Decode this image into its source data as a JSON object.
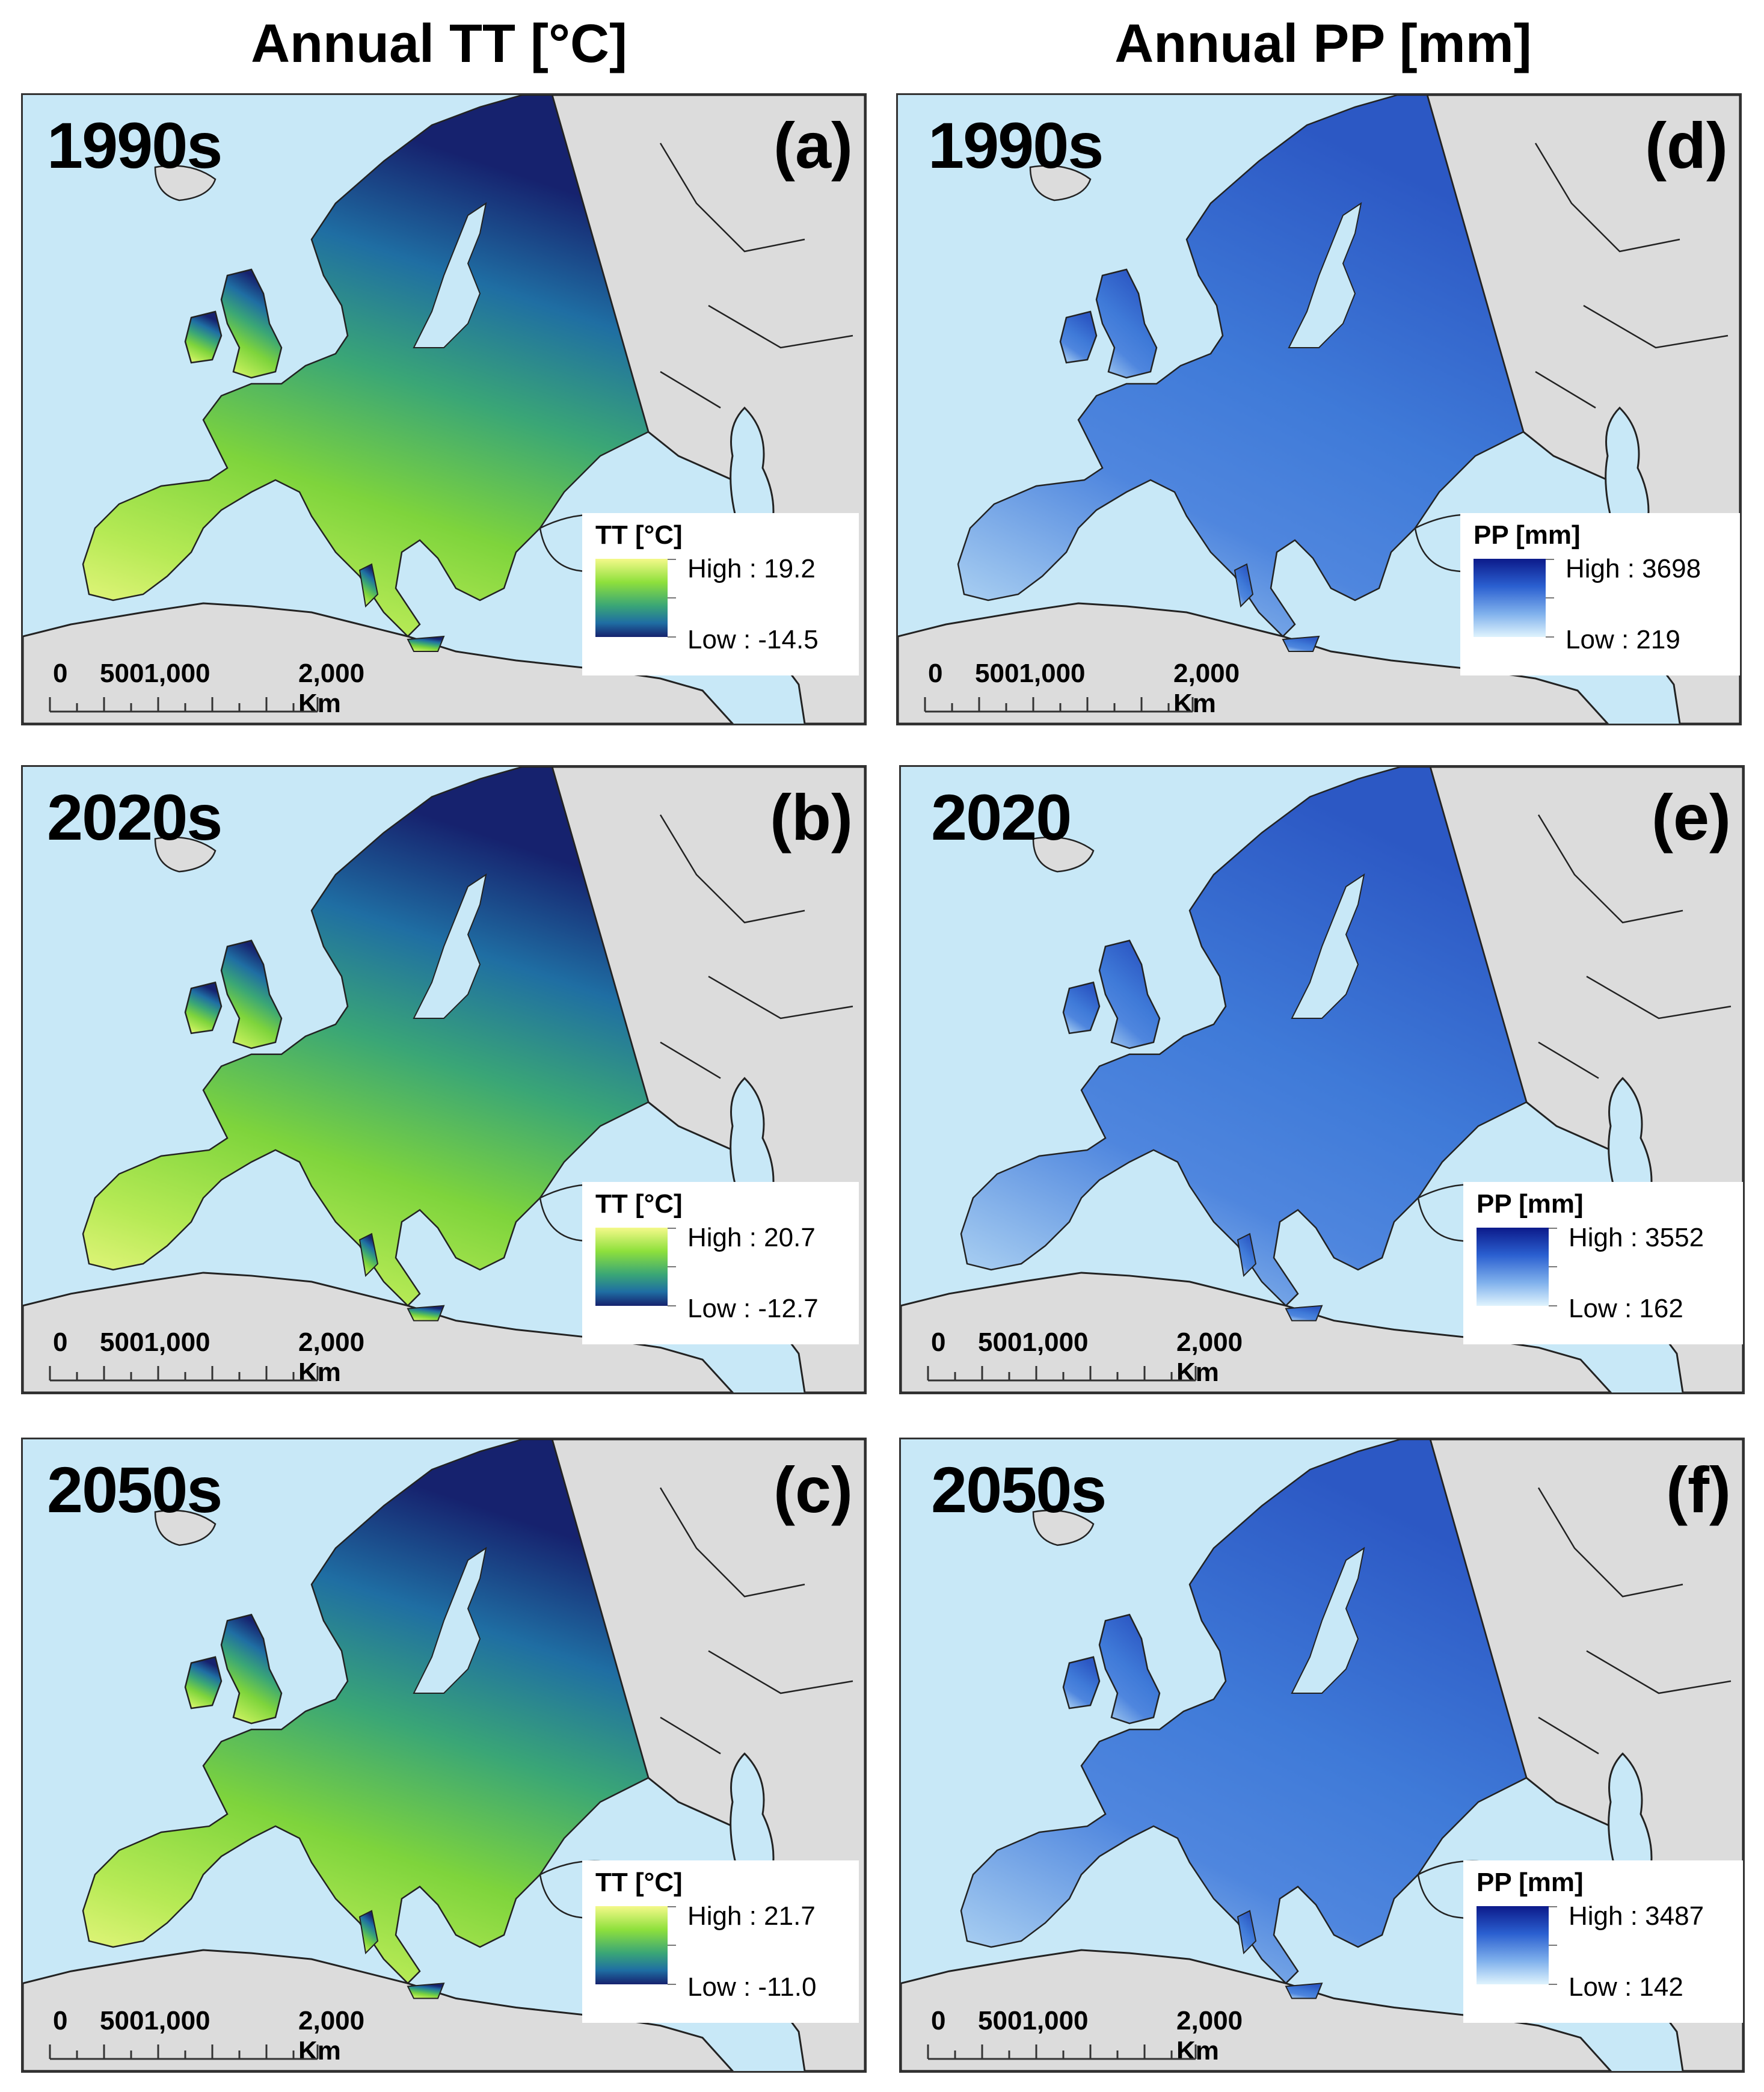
{
  "column_titles": {
    "left": "Annual TT [°C]",
    "right": "Annual PP [mm]"
  },
  "colors": {
    "sea": "#c8e8f7",
    "land_outside": "#dcdcdc",
    "border": "#222222",
    "tt_ramp": [
      "#f4f98a",
      "#8ee03c",
      "#3aa676",
      "#1f6ea3",
      "#16226e"
    ],
    "pp_ramp": [
      "#0c1a8a",
      "#2a5fd0",
      "#7fb0ec",
      "#dff3fd"
    ]
  },
  "panels": [
    {
      "id": "a",
      "label": "(a)",
      "period": "1990s",
      "variable": "TT",
      "legend": {
        "title": "TT [°C]",
        "high": "High : 19.2",
        "low": "Low : -14.5"
      },
      "scale": {
        "zero": "0",
        "mid": "5001,000",
        "end": "2,000 Km"
      }
    },
    {
      "id": "b",
      "label": "(b)",
      "period": "2020s",
      "variable": "TT",
      "legend": {
        "title": "TT [°C]",
        "high": "High : 20.7",
        "low": "Low : -12.7"
      },
      "scale": {
        "zero": "0",
        "mid": "5001,000",
        "end": "2,000 Km"
      }
    },
    {
      "id": "c",
      "label": "(c)",
      "period": "2050s",
      "variable": "TT",
      "legend": {
        "title": "TT [°C]",
        "high": "High : 21.7",
        "low": "Low : -11.0"
      },
      "scale": {
        "zero": "0",
        "mid": "5001,000",
        "end": "2,000 Km"
      }
    },
    {
      "id": "d",
      "label": "(d)",
      "period": "1990s",
      "variable": "PP",
      "legend": {
        "title": "PP [mm]",
        "high": "High : 3698",
        "low": "Low : 219"
      },
      "scale": {
        "zero": "0",
        "mid": "5001,000",
        "end": "2,000 Km"
      }
    },
    {
      "id": "e",
      "label": "(e)",
      "period": "2020",
      "variable": "PP",
      "legend": {
        "title": "PP [mm]",
        "high": "High : 3552",
        "low": "Low : 162"
      },
      "scale": {
        "zero": "0",
        "mid": "5001,000",
        "end": "2,000 Km"
      }
    },
    {
      "id": "f",
      "label": "(f)",
      "period": "2050s",
      "variable": "PP",
      "legend": {
        "title": "PP [mm]",
        "high": "High : 3487",
        "low": "Low : 142"
      },
      "scale": {
        "zero": "0",
        "mid": "5001,000",
        "end": "2,000 Km"
      }
    }
  ]
}
